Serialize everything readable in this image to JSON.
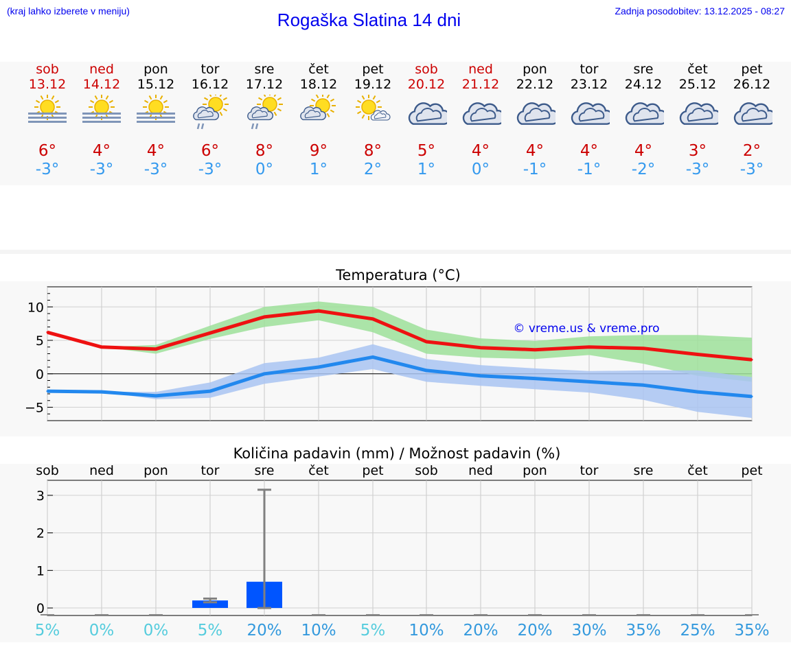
{
  "header": {
    "menu_hint": "(kraj lahko izberete v meniju)",
    "title": "Rogaška Slatina 14 dni",
    "updated": "Zadnja posodobitev: 13.12.2025 - 08:27"
  },
  "days": [
    {
      "name": "sob",
      "date": "13.12",
      "weekend": true,
      "icon": "sun-fog-icon",
      "tmax": "6°",
      "tmin": "-3°"
    },
    {
      "name": "ned",
      "date": "14.12",
      "weekend": true,
      "icon": "sun-fog-icon",
      "tmax": "4°",
      "tmin": "-3°"
    },
    {
      "name": "pon",
      "date": "15.12",
      "weekend": false,
      "icon": "sun-fog-icon",
      "tmax": "4°",
      "tmin": "-3°"
    },
    {
      "name": "tor",
      "date": "16.12",
      "weekend": false,
      "icon": "sun-cloud-rain-icon",
      "tmax": "6°",
      "tmin": "-3°"
    },
    {
      "name": "sre",
      "date": "17.12",
      "weekend": false,
      "icon": "sun-cloud-rain-icon",
      "tmax": "8°",
      "tmin": "0°"
    },
    {
      "name": "čet",
      "date": "18.12",
      "weekend": false,
      "icon": "sun-cloud-icon",
      "tmax": "9°",
      "tmin": "1°"
    },
    {
      "name": "pet",
      "date": "19.12",
      "weekend": false,
      "icon": "sun-small-cloud-icon",
      "tmax": "8°",
      "tmin": "2°"
    },
    {
      "name": "sob",
      "date": "20.12",
      "weekend": true,
      "icon": "cloud-icon",
      "tmax": "5°",
      "tmin": "1°"
    },
    {
      "name": "ned",
      "date": "21.12",
      "weekend": true,
      "icon": "cloud-icon",
      "tmax": "4°",
      "tmin": "0°"
    },
    {
      "name": "pon",
      "date": "22.12",
      "weekend": false,
      "icon": "cloud-icon",
      "tmax": "4°",
      "tmin": "-1°"
    },
    {
      "name": "tor",
      "date": "23.12",
      "weekend": false,
      "icon": "cloud-icon",
      "tmax": "4°",
      "tmin": "-1°"
    },
    {
      "name": "sre",
      "date": "24.12",
      "weekend": false,
      "icon": "cloud-icon",
      "tmax": "4°",
      "tmin": "-2°"
    },
    {
      "name": "čet",
      "date": "25.12",
      "weekend": false,
      "icon": "cloud-icon",
      "tmax": "3°",
      "tmin": "-3°"
    },
    {
      "name": "pet",
      "date": "26.12",
      "weekend": false,
      "icon": "cloud-icon",
      "tmax": "2°",
      "tmin": "-3°"
    }
  ],
  "colors": {
    "weekend": "#cc0000",
    "weekday": "#000000",
    "tmax": "#cc0000",
    "tmin": "#3399ee",
    "max_line": "#ee1111",
    "min_line": "#2288ee",
    "max_band": "#9ee09a",
    "min_band": "#a9c4f2",
    "bar": "#0055ff",
    "link": "#0000ee"
  },
  "chart_data": [
    {
      "type": "line",
      "title": "Temperatura (°C)",
      "x": [
        0,
        1,
        2,
        3,
        4,
        5,
        6,
        7,
        8,
        9,
        10,
        11,
        12,
        13
      ],
      "ylim": [
        -7,
        13
      ],
      "yticks": [
        -5,
        0,
        5,
        10
      ],
      "ytick_labels": [
        "−5",
        "0",
        "5",
        "10"
      ],
      "watermark": "© vreme.us & vreme.pro",
      "series": [
        {
          "name": "max",
          "values": [
            6.2,
            4.0,
            3.7,
            6.1,
            8.5,
            9.4,
            8.2,
            4.8,
            3.9,
            3.6,
            4.0,
            3.8,
            2.9,
            2.1
          ],
          "band_low": [
            6.2,
            4.0,
            3.0,
            5.2,
            7.0,
            8.0,
            6.2,
            3.0,
            2.4,
            2.2,
            2.8,
            1.5,
            -0.3,
            -1.2
          ],
          "band_high": [
            6.2,
            4.0,
            4.3,
            7.2,
            10.0,
            10.8,
            10.0,
            6.6,
            5.3,
            4.9,
            5.6,
            5.8,
            5.8,
            5.4
          ]
        },
        {
          "name": "min",
          "values": [
            -2.6,
            -2.7,
            -3.3,
            -2.6,
            0.0,
            1.0,
            2.5,
            0.5,
            -0.3,
            -0.7,
            -1.2,
            -1.7,
            -2.7,
            -3.4
          ],
          "band_low": [
            -2.6,
            -2.7,
            -3.8,
            -3.6,
            -1.5,
            -0.4,
            0.7,
            -1.2,
            -1.8,
            -2.3,
            -2.8,
            -3.9,
            -5.7,
            -6.6
          ],
          "band_high": [
            -2.6,
            -2.7,
            -2.7,
            -1.3,
            1.6,
            2.4,
            4.4,
            2.2,
            1.3,
            0.8,
            0.4,
            0.5,
            0.5,
            -0.5
          ]
        }
      ]
    },
    {
      "type": "bar",
      "title": "Količina padavin (mm) / Možnost padavin (%)",
      "categories": [
        "sob",
        "ned",
        "pon",
        "tor",
        "sre",
        "čet",
        "pet",
        "sob",
        "ned",
        "pon",
        "tor",
        "sre",
        "čet",
        "pet"
      ],
      "values": [
        0,
        0,
        0,
        0.2,
        0.7,
        0,
        0,
        0,
        0,
        0,
        0,
        0,
        0,
        0
      ],
      "error_high": [
        0,
        0,
        0,
        0.25,
        3.15,
        0,
        0,
        0,
        0,
        0,
        0,
        0,
        0,
        0
      ],
      "error_low": [
        0,
        0,
        0,
        0.15,
        0,
        0,
        0,
        0,
        0,
        0,
        0,
        0,
        0,
        0
      ],
      "ylim": [
        -0.2,
        3.4
      ],
      "yticks": [
        0,
        1,
        2,
        3
      ],
      "ytick_labels": [
        "0",
        "1",
        "2",
        "3"
      ],
      "probability": [
        "5%",
        "0%",
        "0%",
        "5%",
        "20%",
        "10%",
        "5%",
        "10%",
        "20%",
        "20%",
        "30%",
        "35%",
        "25%",
        "35%"
      ],
      "probability_values": [
        5,
        0,
        0,
        5,
        20,
        10,
        5,
        10,
        20,
        20,
        30,
        35,
        25,
        35
      ]
    }
  ]
}
